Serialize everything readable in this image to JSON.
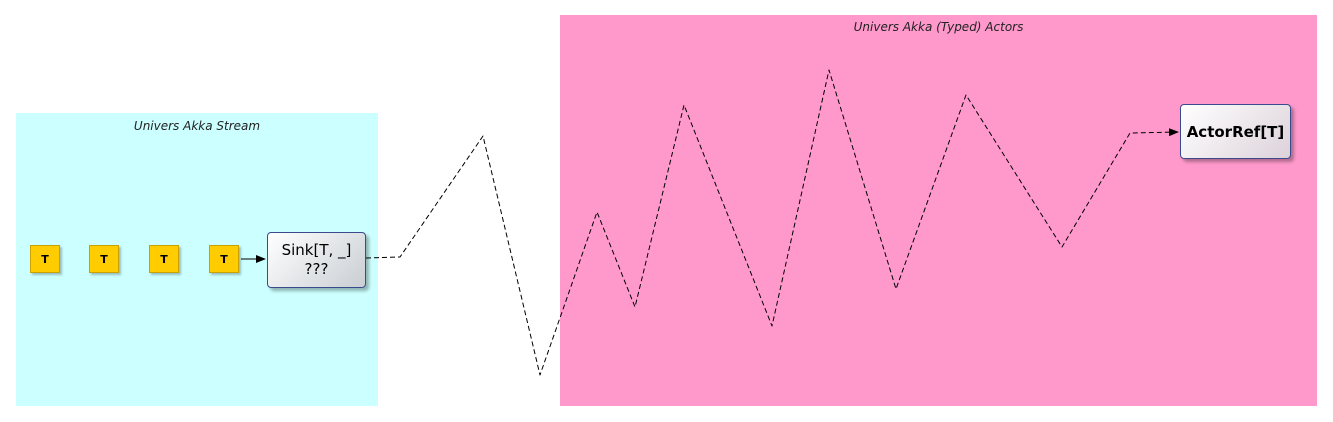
{
  "regions": {
    "stream": {
      "title": "Univers Akka Stream",
      "color": "#ccffff"
    },
    "actors": {
      "title": "Univers Akka (Typed) Actors",
      "color": "#ff99cc"
    }
  },
  "tokens": [
    "T",
    "T",
    "T",
    "T"
  ],
  "token_color": "#ffcc00",
  "sink": {
    "line1": "Sink[T, _]",
    "line2": "???"
  },
  "actor_ref": {
    "label": "ActorRef[T]"
  },
  "connector": {
    "style": "dashed",
    "color": "#000000"
  }
}
